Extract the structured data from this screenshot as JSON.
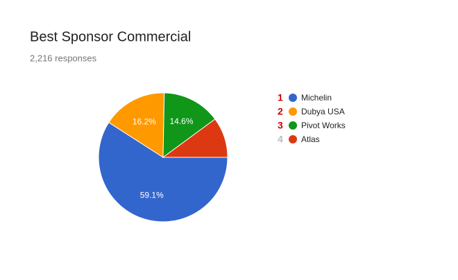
{
  "chart_data": {
    "type": "pie",
    "title": "Best Sponsor Commercial",
    "subtitle": "2,216 responses",
    "categories": [
      "Michelin",
      "Dubya USA",
      "Pivot Works",
      "Atlas"
    ],
    "values": [
      59.1,
      16.2,
      14.6,
      10.1
    ],
    "value_labels": [
      "59.1%",
      "16.2%",
      "14.6%",
      null
    ],
    "colors": [
      "#3366cc",
      "#ff9900",
      "#109618",
      "#dc3912"
    ],
    "ranks": [
      1,
      2,
      3,
      4
    ],
    "rank_colors": [
      "#cc0000",
      "#cc0000",
      "#cc0000",
      "#bbbbbb"
    ],
    "legend": "right"
  }
}
